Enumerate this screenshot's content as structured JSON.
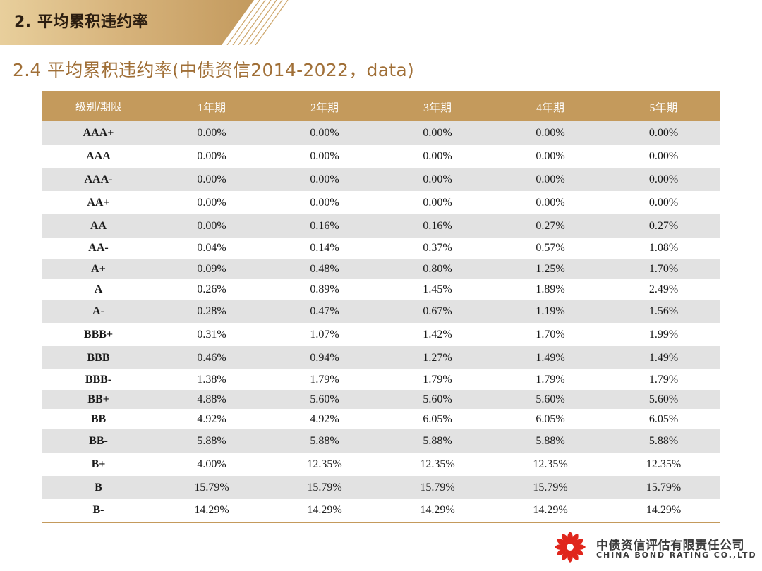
{
  "header": {
    "section_title": "2. 平均累积违约率",
    "subtitle": "2.4 平均累积违约率(中债资信2014-2022，data)"
  },
  "table": {
    "columns": [
      "级别/期限",
      "1年期",
      "2年期",
      "3年期",
      "4年期",
      "5年期"
    ],
    "rows": [
      {
        "grade": "AAA+",
        "values": [
          "0.00%",
          "0.00%",
          "0.00%",
          "0.00%",
          "0.00%"
        ]
      },
      {
        "grade": "AAA",
        "values": [
          "0.00%",
          "0.00%",
          "0.00%",
          "0.00%",
          "0.00%"
        ]
      },
      {
        "grade": "AAA-",
        "values": [
          "0.00%",
          "0.00%",
          "0.00%",
          "0.00%",
          "0.00%"
        ]
      },
      {
        "grade": "AA+",
        "values": [
          "0.00%",
          "0.00%",
          "0.00%",
          "0.00%",
          "0.00%"
        ]
      },
      {
        "grade": "AA",
        "values": [
          "0.00%",
          "0.16%",
          "0.16%",
          "0.27%",
          "0.27%"
        ]
      },
      {
        "grade": "AA-",
        "values": [
          "0.04%",
          "0.14%",
          "0.37%",
          "0.57%",
          "1.08%"
        ]
      },
      {
        "grade": "A+",
        "values": [
          "0.09%",
          "0.48%",
          "0.80%",
          "1.25%",
          "1.70%"
        ]
      },
      {
        "grade": "A",
        "values": [
          "0.26%",
          "0.89%",
          "1.45%",
          "1.89%",
          "2.49%"
        ]
      },
      {
        "grade": "A-",
        "values": [
          "0.28%",
          "0.47%",
          "0.67%",
          "1.19%",
          "1.56%"
        ]
      },
      {
        "grade": "BBB+",
        "values": [
          "0.31%",
          "1.07%",
          "1.42%",
          "1.70%",
          "1.99%"
        ]
      },
      {
        "grade": "BBB",
        "values": [
          "0.46%",
          "0.94%",
          "1.27%",
          "1.49%",
          "1.49%"
        ]
      },
      {
        "grade": "BBB-",
        "values": [
          "1.38%",
          "1.79%",
          "1.79%",
          "1.79%",
          "1.79%"
        ]
      },
      {
        "grade": "BB+",
        "values": [
          "4.88%",
          "5.60%",
          "5.60%",
          "5.60%",
          "5.60%"
        ]
      },
      {
        "grade": "BB",
        "values": [
          "4.92%",
          "4.92%",
          "6.05%",
          "6.05%",
          "6.05%"
        ]
      },
      {
        "grade": "BB-",
        "values": [
          "5.88%",
          "5.88%",
          "5.88%",
          "5.88%",
          "5.88%"
        ]
      },
      {
        "grade": "B+",
        "values": [
          "4.00%",
          "12.35%",
          "12.35%",
          "12.35%",
          "12.35%"
        ]
      },
      {
        "grade": "B",
        "values": [
          "15.79%",
          "15.79%",
          "15.79%",
          "15.79%",
          "15.79%"
        ]
      },
      {
        "grade": "B-",
        "values": [
          "14.29%",
          "14.29%",
          "14.29%",
          "14.29%",
          "14.29%"
        ]
      }
    ]
  },
  "footer": {
    "company_cn": "中债资信评估有限责任公司",
    "company_en": "CHINA BOND RATING CO.,LTD",
    "logo_icon": "china-bond-rating-logo-icon"
  },
  "colors": {
    "header_fill": "#c49a5c",
    "banner_gold": "#c9a267",
    "subtitle_text": "#a06f37",
    "row_shade": "#e2e2e2",
    "logo_red": "#e0261c"
  }
}
